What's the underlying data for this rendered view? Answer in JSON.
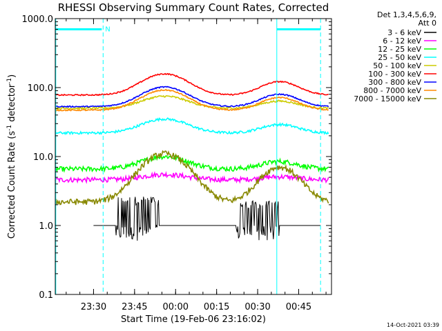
{
  "chart_data": {
    "type": "line",
    "title": "RHESSI Observing Summary Count Rates, Corrected",
    "xlabel": "Start Time (19-Feb-06 23:16:02)",
    "ylabel_main": "Corrected Count Rate (s",
    "ylabel_exp1": "-1",
    "ylabel_mid": " detector",
    "ylabel_exp2": "-1",
    "ylabel_end": ")",
    "y_scale": "log",
    "ylim": [
      0.1,
      1000
    ],
    "xlim_minutes": [
      0,
      101
    ],
    "x_tick_minutes": [
      14,
      29,
      44,
      59,
      74,
      89
    ],
    "x_tick_labels": [
      "23:30",
      "23:45",
      "00:00",
      "00:15",
      "00:30",
      "00:45"
    ],
    "y_ticks": [
      0.1,
      1,
      10,
      100,
      1000
    ],
    "y_tick_labels": [
      "0.1",
      "1.0",
      "10.0",
      "100.0",
      "1000.0"
    ],
    "grid": false,
    "legend_placement": "right",
    "legend_header": [
      "Det 1,3,4,5,6,9,",
      "Att 0"
    ],
    "series": [
      {
        "name": "3 - 6 keV",
        "color": "#000000",
        "segments": [
          [
            30,
            2.2,
            0.6
          ],
          [
            74,
            1.9,
            0.6
          ]
        ],
        "gaps": [
          [
            48,
            56
          ]
        ]
      },
      {
        "name": "6 - 12 keV",
        "color": "#ff00ff",
        "base": 4.6,
        "peak": 5.5,
        "jitter": 0.08
      },
      {
        "name": "12 - 25 keV",
        "color": "#00ff00",
        "base": 6.6,
        "peak": 10.0,
        "jitter": 0.08
      },
      {
        "name": "25 - 50 keV",
        "color": "#00ffff",
        "base": 22,
        "peak": 35,
        "jitter": 0.04
      },
      {
        "name": "50 - 100 keV",
        "color": "#cccc00",
        "base": 50,
        "peak": 75,
        "jitter": 0.03
      },
      {
        "name": "100 - 300 keV",
        "color": "#ff0000",
        "base": 78,
        "peak": 158,
        "jitter": 0.02
      },
      {
        "name": "300 - 800 keV",
        "color": "#0000ff",
        "base": 53,
        "peak": 102,
        "jitter": 0.02
      },
      {
        "name": "800 - 7000 keV",
        "color": "#ff8800",
        "base": 47,
        "peak": 92,
        "jitter": 0.02
      },
      {
        "name": "7000 - 15000 keV",
        "color": "#888800",
        "base": 2.2,
        "peak": 11.0,
        "jitter": 0.1
      }
    ],
    "attenuator_bar_minutes": [
      [
        0,
        17
      ],
      [
        81,
        97
      ]
    ],
    "attenuator_bar_level": 700,
    "saa_marker_label": "N",
    "dashed_marker_minutes": [
      17.5,
      97
    ],
    "solid_marker_minutes": [
      81,
      0.2
    ]
  },
  "timestamp": "14-Oct-2021 03:39"
}
